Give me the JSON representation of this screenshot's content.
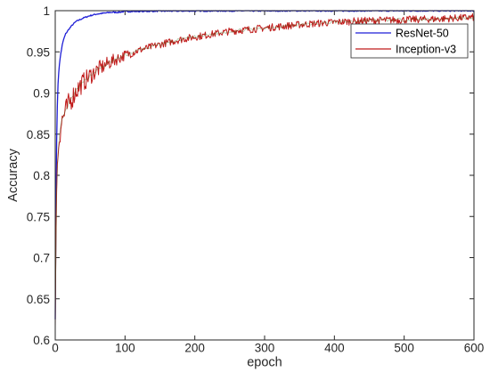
{
  "chart_data": {
    "type": "line",
    "xlabel": "epoch",
    "ylabel": "Accuracy",
    "xlim": [
      0,
      600
    ],
    "ylim": [
      0.6,
      1.0
    ],
    "x_ticks": [
      0,
      100,
      200,
      300,
      400,
      500,
      600
    ],
    "x_tick_labels": [
      "0",
      "100",
      "200",
      "300",
      "400",
      "500",
      "600"
    ],
    "y_ticks": [
      0.6,
      0.65,
      0.7,
      0.75,
      0.8,
      0.85,
      0.9,
      0.95,
      1.0
    ],
    "y_tick_labels": [
      "0.6",
      "0.65",
      "0.7",
      "0.75",
      "0.8",
      "0.85",
      "0.9",
      "0.95",
      "1"
    ],
    "grid": false,
    "legend_position": "top-right",
    "series": [
      {
        "name": "ResNet-50",
        "color": "#1f1fd6",
        "x": [
          0,
          1,
          2,
          3,
          4,
          5,
          6,
          8,
          10,
          12,
          15,
          20,
          25,
          30,
          40,
          50,
          60,
          70,
          80,
          90,
          100,
          120,
          150,
          200,
          250,
          300,
          350,
          400,
          450,
          500,
          550,
          600
        ],
        "y": [
          0.625,
          0.76,
          0.84,
          0.885,
          0.91,
          0.925,
          0.935,
          0.948,
          0.958,
          0.965,
          0.972,
          0.978,
          0.983,
          0.987,
          0.991,
          0.994,
          0.996,
          0.997,
          0.998,
          0.998,
          0.999,
          0.9992,
          0.9995,
          0.9997,
          0.9998,
          0.9998,
          0.9999,
          0.9999,
          0.9999,
          0.9999,
          0.9999,
          0.9999
        ]
      },
      {
        "name": "Inception-v3",
        "color": "#c01a1a",
        "x": [
          0,
          1,
          2,
          3,
          5,
          8,
          10,
          15,
          20,
          30,
          40,
          50,
          60,
          80,
          100,
          120,
          150,
          180,
          200,
          250,
          300,
          350,
          400,
          450,
          500,
          550,
          600
        ],
        "y": [
          0.615,
          0.72,
          0.78,
          0.81,
          0.84,
          0.86,
          0.868,
          0.878,
          0.888,
          0.903,
          0.913,
          0.921,
          0.928,
          0.938,
          0.946,
          0.952,
          0.959,
          0.965,
          0.968,
          0.975,
          0.979,
          0.983,
          0.986,
          0.988,
          0.989,
          0.99,
          0.992
        ]
      }
    ]
  }
}
